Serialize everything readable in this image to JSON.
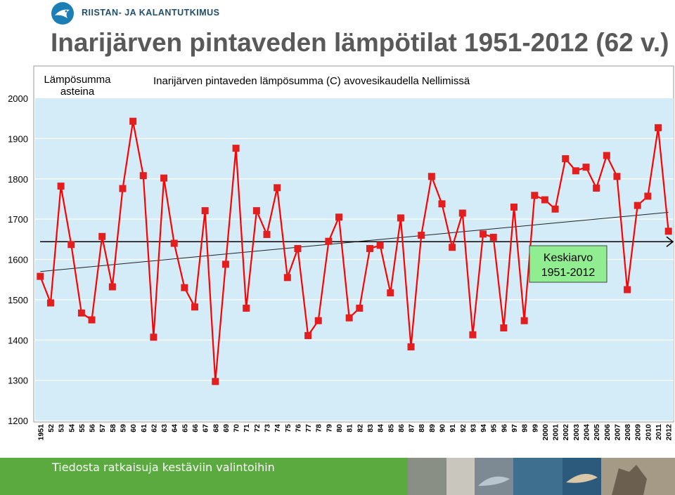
{
  "brand": {
    "name": "RIISTAN- JA KALANTUTKIMUS"
  },
  "page_title": "Inarijärven pintaveden lämpötilat 1951-2012 (62 v.)",
  "footer": {
    "slogan": "Tiedosta ratkaisuja kestäviin valintoihin"
  },
  "colors": {
    "series": "#ff0000",
    "marker": "#e31e1e",
    "plot_bg": "#d3ecf7",
    "footer": "#5aaa3f",
    "callout": "#90ee90"
  },
  "chart_data": {
    "type": "line",
    "title": "Inarijärven pintaveden lämpösumma (C) avovesikaudella Nellimissä",
    "ylabel": "Lämpösumma asteina",
    "xlabel": "",
    "ylim": [
      1200,
      2000
    ],
    "yticks": [
      1200,
      1300,
      1400,
      1500,
      1600,
      1700,
      1800,
      1900,
      2000
    ],
    "grid": true,
    "categories": [
      "1951",
      "52",
      "53",
      "54",
      "55",
      "56",
      "57",
      "58",
      "59",
      "60",
      "61",
      "62",
      "63",
      "64",
      "65",
      "66",
      "67",
      "68",
      "69",
      "70",
      "71",
      "72",
      "73",
      "74",
      "75",
      "76",
      "77",
      "78",
      "79",
      "80",
      "81",
      "82",
      "83",
      "84",
      "85",
      "86",
      "87",
      "88",
      "89",
      "90",
      "91",
      "92",
      "93",
      "94",
      "95",
      "96",
      "97",
      "98",
      "99",
      "2000",
      "2001",
      "2002",
      "2003",
      "2004",
      "2005",
      "2006",
      "2007",
      "2008",
      "2009",
      "2010",
      "2011",
      "2012"
    ],
    "series": [
      {
        "values": [
          1558,
          1492,
          1782,
          1637,
          1467,
          1450,
          1657,
          1532,
          1776,
          1943,
          1808,
          1407,
          1802,
          1640,
          1530,
          1482,
          1721,
          1297,
          1588,
          1876,
          1479,
          1721,
          1662,
          1778,
          1555,
          1627,
          1411,
          1448,
          1645,
          1705,
          1455,
          1479,
          1627,
          1635,
          1517,
          1703,
          1383,
          1660,
          1806,
          1738,
          1630,
          1715,
          1413,
          1663,
          1655,
          1430,
          1730,
          1448,
          1759,
          1748,
          1725,
          1850,
          1820,
          1829,
          1777,
          1858,
          1806,
          1525,
          1734,
          1757,
          1927,
          1670
        ]
      }
    ],
    "trend": {
      "start": 1570,
      "end": 1717
    },
    "mean_line": {
      "value": 1644
    },
    "annotation": {
      "line1": "Keskiarvo",
      "line2": "1951-2012"
    }
  }
}
